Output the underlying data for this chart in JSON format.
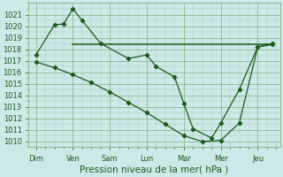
{
  "bg_color": "#cce8e8",
  "grid_major_color": "#88bb88",
  "grid_minor_color": "#aaccaa",
  "line_color": "#1a5c1a",
  "days": [
    "Dim",
    "Ven",
    "Sam",
    "Lun",
    "Mar",
    "Mer",
    "Jeu"
  ],
  "day_x": [
    0,
    1,
    2,
    3,
    4,
    5,
    6
  ],
  "flat_line": {
    "x": [
      1,
      2,
      3,
      4,
      5,
      6,
      6.4
    ],
    "y": [
      1018.4,
      1018.4,
      1018.4,
      1018.4,
      1018.4,
      1018.4,
      1018.4
    ]
  },
  "main_line_x": [
    0,
    0.5,
    0.75,
    1.0,
    1.25,
    1.75,
    2.5,
    3.0,
    3.25,
    3.75,
    4.0,
    4.25,
    4.75,
    5.0,
    5.5,
    6.0,
    6.4
  ],
  "main_line_y": [
    1017.5,
    1020.1,
    1020.2,
    1021.5,
    1020.5,
    1018.5,
    1017.2,
    1017.5,
    1016.5,
    1015.6,
    1013.3,
    1011.1,
    1010.3,
    1011.6,
    1014.5,
    1018.2,
    1018.5
  ],
  "trend_line_x": [
    0,
    0.5,
    1.0,
    1.5,
    2.0,
    2.5,
    3.0,
    3.5,
    4.0,
    4.5,
    5.0,
    5.5,
    6.0,
    6.4
  ],
  "trend_line_y": [
    1016.9,
    1016.4,
    1015.8,
    1015.1,
    1014.3,
    1013.4,
    1012.5,
    1011.5,
    1010.5,
    1010.0,
    1010.1,
    1011.6,
    1018.2,
    1018.4
  ],
  "ylim": [
    1009.5,
    1022.0
  ],
  "xlim": [
    -0.2,
    6.6
  ],
  "xlabel": "Pression niveau de la mer( hPa )",
  "xlabel_fontsize": 7.5,
  "tick_fontsize": 6.0,
  "figsize": [
    3.2,
    2.0
  ],
  "dpi": 100
}
